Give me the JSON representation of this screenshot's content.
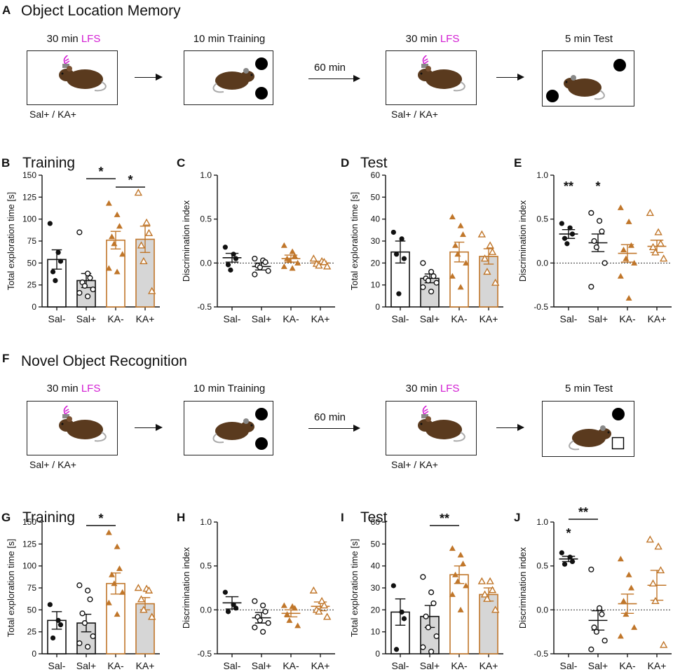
{
  "colors": {
    "black": "#111111",
    "orange": "#c0762a",
    "gray_fill": "#d6d6d6",
    "magenta": "#d21bd2"
  },
  "icons": {
    "mouse": "mouse-icon",
    "familiar_object": "filled-circle-icon",
    "novel_object": "square-icon"
  },
  "sectionA": {
    "label": "A",
    "title": "Object Location Memory",
    "steps": [
      {
        "caption_prefix": "30 min ",
        "caption_lfs": "LFS",
        "sub": "Sal+ / KA+"
      },
      {
        "caption": "10 min Training"
      },
      {
        "caption_prefix": "30 min ",
        "caption_lfs": "LFS",
        "sub": "Sal+ / KA+"
      },
      {
        "caption": "5 min Test"
      }
    ],
    "interval": "60 min"
  },
  "sectionF": {
    "label": "F",
    "title": "Novel Object Recognition",
    "steps": [
      {
        "caption_prefix": "30 min ",
        "caption_lfs": "LFS",
        "sub": "Sal+ / KA+"
      },
      {
        "caption": "10 min Training"
      },
      {
        "caption_prefix": "30 min ",
        "caption_lfs": "LFS",
        "sub": "Sal+ / KA+"
      },
      {
        "caption": "5 min Test"
      }
    ],
    "interval": "60 min"
  },
  "chart_data": [
    {
      "id": "B",
      "type": "bar",
      "label": "B",
      "title": "Training",
      "ylabel": "Total exploration time [s]",
      "categories": [
        "Sal-",
        "Sal+",
        "KA-",
        "KA+"
      ],
      "ylim": [
        0,
        150
      ],
      "yticks": [
        0,
        25,
        50,
        75,
        100,
        125,
        150
      ],
      "bars": true,
      "series": [
        {
          "name": "Sal-",
          "mean": 54,
          "sem": 11,
          "points": [
            95,
            62,
            52,
            40,
            30
          ]
        },
        {
          "name": "Sal+",
          "mean": 30,
          "sem": 8,
          "points": [
            85,
            38,
            33,
            28,
            24,
            20,
            16,
            12
          ]
        },
        {
          "name": "KA-",
          "mean": 76,
          "sem": 10,
          "points": [
            118,
            105,
            92,
            80,
            72,
            60,
            44,
            40
          ]
        },
        {
          "name": "KA+",
          "mean": 77,
          "sem": 15,
          "points": [
            130,
            96,
            84,
            70,
            52,
            18
          ]
        }
      ],
      "sig": [
        {
          "from": 1,
          "to": 2,
          "text": "*"
        },
        {
          "from": 2,
          "to": 3,
          "text": "*"
        }
      ]
    },
    {
      "id": "C",
      "type": "scatter",
      "label": "C",
      "title": "",
      "ylabel": "Discrimination index",
      "categories": [
        "Sal-",
        "Sal+",
        "KA-",
        "KA+"
      ],
      "ylim": [
        -0.5,
        1.0
      ],
      "yticks": [
        -0.5,
        0.0,
        0.5,
        1.0
      ],
      "bars": false,
      "series": [
        {
          "name": "Sal-",
          "mean": 0.06,
          "sem": 0.05,
          "points": [
            0.18,
            0.1,
            0.05,
            -0.02,
            -0.08
          ]
        },
        {
          "name": "Sal+",
          "mean": -0.04,
          "sem": 0.04,
          "points": [
            0.05,
            0.03,
            0.01,
            -0.03,
            -0.05,
            -0.09,
            -0.13
          ]
        },
        {
          "name": "KA-",
          "mean": 0.05,
          "sem": 0.04,
          "points": [
            0.2,
            0.13,
            0.08,
            0.05,
            0.03,
            0.0,
            -0.04,
            -0.06
          ]
        },
        {
          "name": "KA+",
          "mean": 0.0,
          "sem": 0.02,
          "points": [
            0.05,
            0.02,
            0.01,
            -0.01,
            -0.03,
            -0.04
          ]
        }
      ],
      "sig": [],
      "stars": []
    },
    {
      "id": "D",
      "type": "bar",
      "label": "D",
      "title": "Test",
      "ylabel": "Total exploration time [s]",
      "categories": [
        "Sal-",
        "Sal+",
        "KA-",
        "KA+"
      ],
      "ylim": [
        0,
        60
      ],
      "yticks": [
        0,
        10,
        20,
        30,
        40,
        50,
        60
      ],
      "bars": true,
      "series": [
        {
          "name": "Sal-",
          "mean": 25,
          "sem": 5,
          "points": [
            34,
            31,
            22,
            24,
            6
          ]
        },
        {
          "name": "Sal+",
          "mean": 13,
          "sem": 2,
          "points": [
            20,
            16,
            14,
            13,
            12,
            11,
            9,
            7
          ]
        },
        {
          "name": "KA-",
          "mean": 25,
          "sem": 4.5,
          "points": [
            41,
            37,
            33,
            28,
            24,
            20,
            14,
            9
          ]
        },
        {
          "name": "KA+",
          "mean": 23,
          "sem": 3.5,
          "points": [
            33,
            28,
            25,
            22,
            16,
            11
          ]
        }
      ],
      "sig": []
    },
    {
      "id": "E",
      "type": "scatter",
      "label": "E",
      "title": "",
      "ylabel": "Discrimination index",
      "categories": [
        "Sal-",
        "Sal+",
        "KA-",
        "KA+"
      ],
      "ylim": [
        -0.5,
        1.0
      ],
      "yticks": [
        -0.5,
        0.0,
        0.5,
        1.0
      ],
      "bars": false,
      "series": [
        {
          "name": "Sal-",
          "mean": 0.33,
          "sem": 0.05,
          "points": [
            0.45,
            0.4,
            0.33,
            0.28,
            0.22
          ]
        },
        {
          "name": "Sal+",
          "mean": 0.23,
          "sem": 0.1,
          "points": [
            0.57,
            0.48,
            0.36,
            0.25,
            0.18,
            0.0,
            -0.27
          ]
        },
        {
          "name": "KA-",
          "mean": 0.11,
          "sem": 0.1,
          "points": [
            0.63,
            0.47,
            0.2,
            0.15,
            0.05,
            0.0,
            -0.15,
            -0.4
          ]
        },
        {
          "name": "KA+",
          "mean": 0.19,
          "sem": 0.07,
          "points": [
            0.57,
            0.35,
            0.22,
            0.18,
            0.12,
            0.05
          ]
        }
      ],
      "sig": [],
      "stars": [
        {
          "index": 0,
          "text": "**"
        },
        {
          "index": 1,
          "text": "*"
        }
      ]
    },
    {
      "id": "G",
      "type": "bar",
      "label": "G",
      "title": "Training",
      "ylabel": "Total exploration time [s]",
      "categories": [
        "Sal-",
        "Sal+",
        "KA-",
        "KA+"
      ],
      "ylim": [
        0,
        150
      ],
      "yticks": [
        0,
        25,
        50,
        75,
        100,
        125,
        150
      ],
      "bars": true,
      "series": [
        {
          "name": "Sal-",
          "mean": 38,
          "sem": 10,
          "points": [
            56,
            38,
            33,
            18
          ]
        },
        {
          "name": "Sal+",
          "mean": 35,
          "sem": 10,
          "points": [
            78,
            72,
            62,
            46,
            35,
            20,
            12,
            8
          ]
        },
        {
          "name": "KA-",
          "mean": 80,
          "sem": 12,
          "points": [
            138,
            122,
            97,
            90,
            80,
            70,
            58,
            45
          ]
        },
        {
          "name": "KA+",
          "mean": 57,
          "sem": 7,
          "points": [
            75,
            74,
            72,
            62,
            50,
            42
          ]
        }
      ],
      "sig": [
        {
          "from": 1,
          "to": 2,
          "text": "*"
        }
      ]
    },
    {
      "id": "H",
      "type": "scatter",
      "label": "H",
      "title": "",
      "ylabel": "Discrimination index",
      "categories": [
        "Sal-",
        "Sal+",
        "KA-",
        "KA+"
      ],
      "ylim": [
        -0.5,
        1.0
      ],
      "yticks": [
        -0.5,
        0.0,
        0.5,
        1.0
      ],
      "bars": false,
      "series": [
        {
          "name": "Sal-",
          "mean": 0.08,
          "sem": 0.07,
          "points": [
            0.2,
            0.06,
            0.02,
            -0.02
          ]
        },
        {
          "name": "Sal+",
          "mean": -0.09,
          "sem": 0.06,
          "points": [
            0.1,
            0.05,
            -0.02,
            -0.08,
            -0.12,
            -0.15,
            -0.2,
            -0.25
          ]
        },
        {
          "name": "KA-",
          "mean": -0.04,
          "sem": 0.04,
          "points": [
            0.05,
            0.04,
            0.02,
            -0.05,
            -0.12,
            -0.18
          ]
        },
        {
          "name": "KA+",
          "mean": 0.04,
          "sem": 0.05,
          "points": [
            0.22,
            0.1,
            0.05,
            0.0,
            -0.02,
            -0.08
          ]
        }
      ],
      "sig": [],
      "stars": []
    },
    {
      "id": "I",
      "type": "bar",
      "label": "I",
      "title": "Test",
      "ylabel": "Total exploration time [s]",
      "categories": [
        "Sal-",
        "Sal+",
        "KA-",
        "KA+"
      ],
      "ylim": [
        0,
        60
      ],
      "yticks": [
        0,
        10,
        20,
        30,
        40,
        50,
        60
      ],
      "bars": true,
      "series": [
        {
          "name": "Sal-",
          "mean": 19,
          "sem": 6,
          "points": [
            31,
            19,
            16,
            2
          ]
        },
        {
          "name": "Sal+",
          "mean": 17,
          "sem": 5,
          "points": [
            35,
            28,
            23,
            17,
            12,
            8,
            3,
            1
          ]
        },
        {
          "name": "KA-",
          "mean": 36,
          "sem": 4,
          "points": [
            48,
            45,
            41,
            36,
            33,
            31,
            27,
            20
          ]
        },
        {
          "name": "KA+",
          "mean": 27,
          "sem": 3,
          "points": [
            33,
            33,
            29,
            27,
            25,
            20
          ]
        }
      ],
      "sig": [
        {
          "from": 1,
          "to": 2,
          "text": "**"
        }
      ]
    },
    {
      "id": "J",
      "type": "scatter",
      "label": "J",
      "title": "",
      "ylabel": "Discrimination index",
      "categories": [
        "Sal-",
        "Sal+",
        "KA-",
        "KA+"
      ],
      "ylim": [
        -0.5,
        1.0
      ],
      "yticks": [
        -0.5,
        0.0,
        0.5,
        1.0
      ],
      "bars": false,
      "series": [
        {
          "name": "Sal-",
          "mean": 0.58,
          "sem": 0.03,
          "points": [
            0.65,
            0.6,
            0.55,
            0.52
          ]
        },
        {
          "name": "Sal+",
          "mean": -0.12,
          "sem": 0.11,
          "points": [
            0.46,
            0.02,
            -0.05,
            -0.2,
            -0.25,
            -0.35,
            -0.45
          ]
        },
        {
          "name": "KA-",
          "mean": 0.07,
          "sem": 0.11,
          "points": [
            0.58,
            0.4,
            0.25,
            0.1,
            -0.05,
            -0.2,
            -0.3
          ]
        },
        {
          "name": "KA+",
          "mean": 0.28,
          "sem": 0.17,
          "points": [
            0.8,
            0.72,
            0.45,
            0.3,
            0.1,
            -0.4
          ]
        }
      ],
      "sig": [
        {
          "from": 0,
          "to": 1,
          "text": "**"
        }
      ],
      "stars": [
        {
          "index": 0,
          "text": "*"
        }
      ]
    }
  ]
}
